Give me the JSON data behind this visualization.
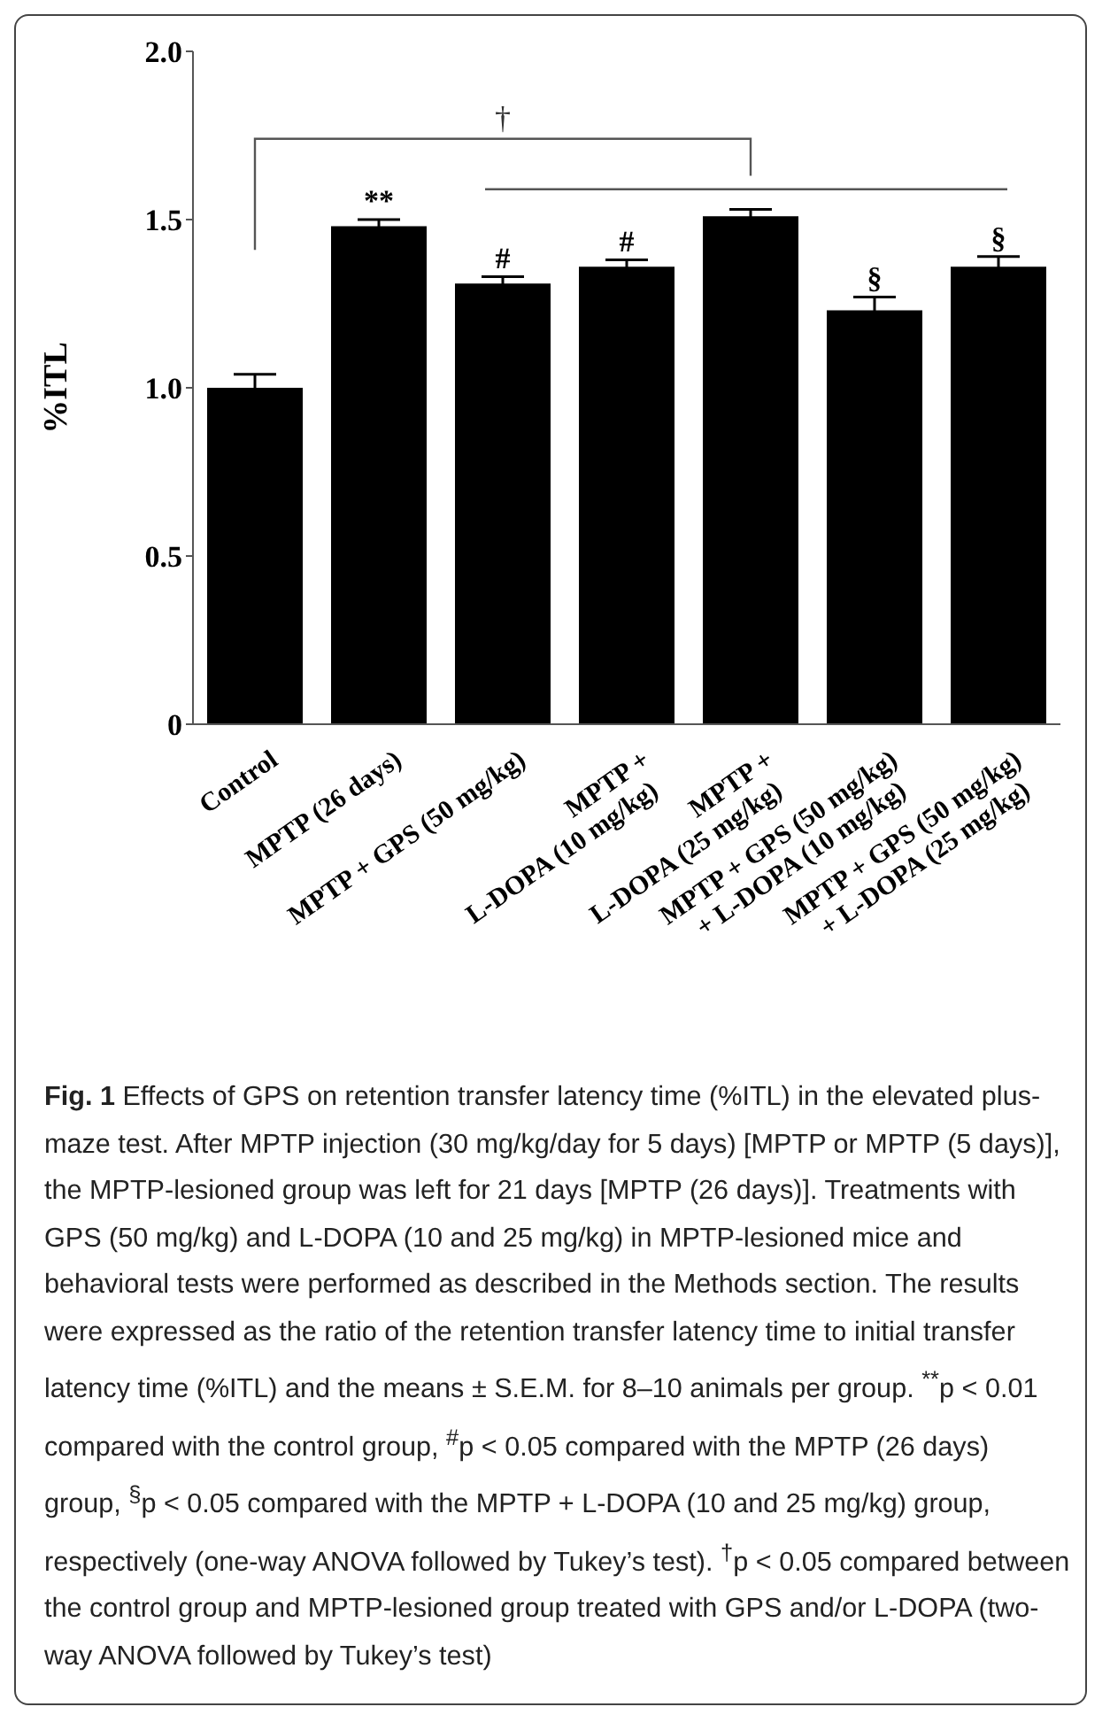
{
  "chart_data": {
    "type": "bar",
    "ylabel": "%ITL",
    "categories": [
      "Control",
      "MPTP (26 days)",
      "MPTP + GPS (50 mg/kg)",
      "MPTP +\nL-DOPA (10 mg/kg)",
      "MPTP +\nL-DOPA (25 mg/kg)",
      "MPTP + GPS (50 mg/kg)\n+ L-DOPA (10 mg/kg)",
      "MPTP + GPS (50 mg/kg)\n+ L-DOPA (25 mg/kg)"
    ],
    "values": [
      1.0,
      1.48,
      1.31,
      1.36,
      1.51,
      1.23,
      1.36
    ],
    "errors": [
      0.04,
      0.02,
      0.02,
      0.02,
      0.02,
      0.04,
      0.03
    ],
    "color": "#000000",
    "ylim": [
      0,
      2
    ],
    "yticks": [
      {
        "value": 0,
        "label": "0"
      },
      {
        "value": 0.5,
        "label": "0.5"
      },
      {
        "value": 1,
        "label": "1.0"
      },
      {
        "value": 1.5,
        "label": "1.5"
      },
      {
        "value": 2,
        "label": "2.0"
      }
    ],
    "annotations": [
      "†",
      {
        "text": "**",
        "x": "MPTP (26 days)",
        "y": 1.48
      },
      {
        "text": "#",
        "x": "MPTP + GPS (50 mg/kg)",
        "y": 1.31
      },
      {
        "text": "#",
        "x": "MPTP +\nL-DOPA (10 mg/kg)",
        "y": 1.36
      },
      {
        "text": "§",
        "x": "MPTP + GPS (50 mg/kg)\n+ L-DOPA (10 mg/kg)",
        "y": 1.23
      },
      {
        "text": "§",
        "x": "MPTP + GPS (50 mg/kg)\n+ L-DOPA (25 mg/kg)",
        "y": 1.36
      },
      "Fig. 1",
      "Effects of GPS on retention transfer latency time (%ITL) in the elevated plus-maze test. After MPTP injection (30 mg/kg/day for 5 days) [MPTP or MPTP (5 days)], the MPTP-lesioned group was left for 21 days [MPTP (26 days)]. Treatments with GPS (50 mg/kg) and L-DOPA (10 and 25 mg/kg) in MPTP-lesioned mice and behavioral tests were performed as described in the Methods section. The results were expressed as the ratio of the retention transfer latency time to initial transfer latency time (%ITL) and the means ± S.E.M. for 8–10 animals per group. $^{**}$p < 0.01 compared with the control group, $^{#}$p < 0.05 compared with the MPTP (26 days) group, $^{§}$p < 0.05 compared with the MPTP + L-DOPA (10 and 25 mg/kg) group, respectively (one-way ANOVA followed by Tukey’s test). $^{†}$p < 0.05 compared between the control group and MPTP-lesioned group treated with GPS and/or L-DOPA (two-way ANOVA followed by Tukey’s test)"
    ]
  }
}
